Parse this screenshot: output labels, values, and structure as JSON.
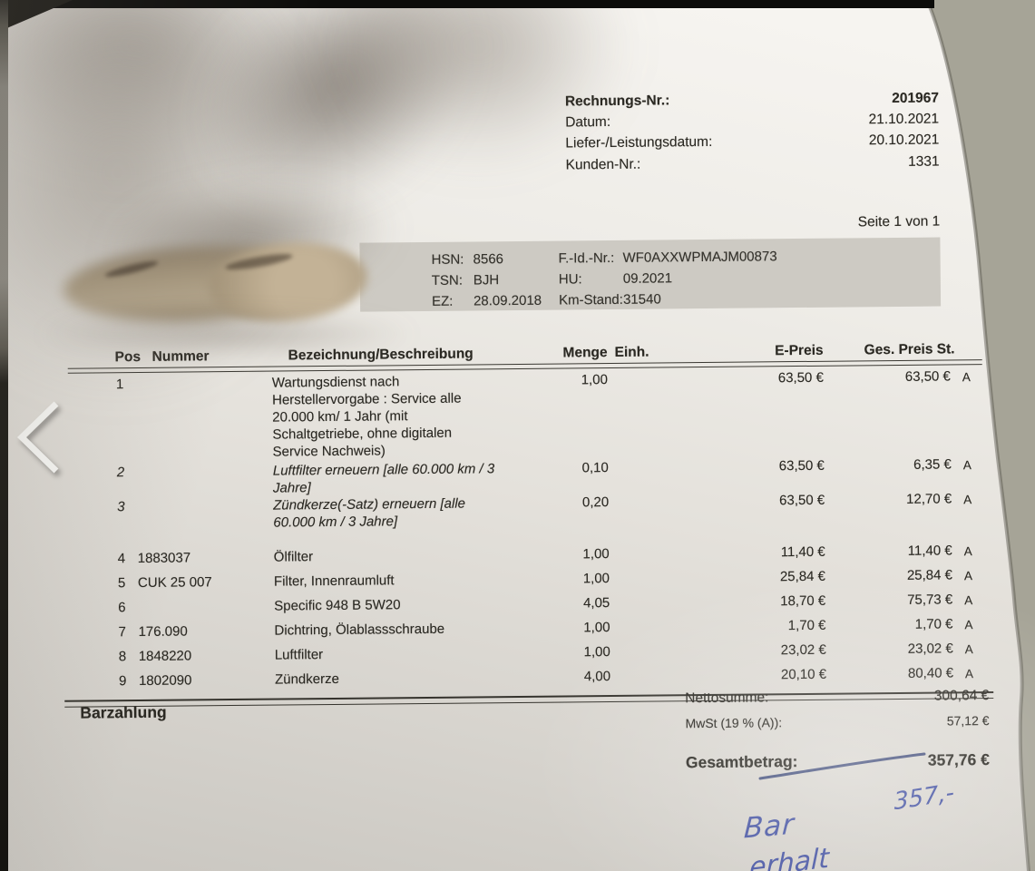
{
  "invoice": {
    "meta": {
      "rows": [
        {
          "label": "Rechnungs-Nr.:",
          "value": "201967"
        },
        {
          "label": "Datum:",
          "value": "21.10.2021"
        },
        {
          "label": "Liefer-/Leistungsdatum:",
          "value": "20.10.2021"
        },
        {
          "label": "Kunden-Nr.:",
          "value": "1331"
        }
      ],
      "page": "Seite 1 von 1"
    },
    "vehicle": {
      "left": [
        {
          "label": "HSN:",
          "value": "8566"
        },
        {
          "label": "TSN:",
          "value": "BJH"
        },
        {
          "label": "EZ:",
          "value": "28.09.2018"
        }
      ],
      "right": [
        {
          "label": "F.-Id.-Nr.:",
          "value": "WF0AXXWPMAJM00873"
        },
        {
          "label": "HU:",
          "value": "09.2021"
        },
        {
          "label": "Km-Stand:",
          "value": "31540"
        }
      ]
    },
    "table": {
      "headers": {
        "pos": "Pos",
        "nummer": "Nummer",
        "desc": "Bezeichnung/Beschreibung",
        "menge": "Menge",
        "einh": "Einh.",
        "epreis": "E-Preis",
        "ges": "Ges. Preis St."
      },
      "rows": [
        {
          "pos": "1",
          "nummer": "",
          "desc": "Wartungsdienst nach\nHerstellervorgabe : Service alle\n20.000 km/ 1 Jahr (mit\nSchaltgetriebe, ohne digitalen\nService Nachweis)",
          "menge": "1,00",
          "epreis": "63,50 €",
          "ges": "63,50 €",
          "st": "A",
          "italic": false
        },
        {
          "pos": "2",
          "nummer": "",
          "desc": "Luftfilter erneuern [alle 60.000 km / 3\nJahre]",
          "menge": "0,10",
          "epreis": "63,50 €",
          "ges": "6,35 €",
          "st": "A",
          "italic": true
        },
        {
          "pos": "3",
          "nummer": "",
          "desc": "Zündkerze(-Satz) erneuern [alle\n60.000 km / 3 Jahre]",
          "menge": "0,20",
          "epreis": "63,50 €",
          "ges": "12,70 €",
          "st": "A",
          "italic": true
        },
        {
          "pos": "4",
          "nummer": "1883037",
          "desc": "Ölfilter",
          "menge": "1,00",
          "epreis": "11,40 €",
          "ges": "11,40 €",
          "st": "A",
          "italic": false
        },
        {
          "pos": "5",
          "nummer": "CUK 25 007",
          "desc": "Filter, Innenraumluft",
          "menge": "1,00",
          "epreis": "25,84 €",
          "ges": "25,84 €",
          "st": "A",
          "italic": false
        },
        {
          "pos": "6",
          "nummer": "",
          "desc": "Specific 948 B 5W20",
          "menge": "4,05",
          "epreis": "18,70 €",
          "ges": "75,73 €",
          "st": "A",
          "italic": false
        },
        {
          "pos": "7",
          "nummer": "176.090",
          "desc": "Dichtring, Ölablassschraube",
          "menge": "1,00",
          "epreis": "1,70 €",
          "ges": "1,70 €",
          "st": "A",
          "italic": false
        },
        {
          "pos": "8",
          "nummer": "1848220",
          "desc": "Luftfilter",
          "menge": "1,00",
          "epreis": "23,02 €",
          "ges": "23,02 €",
          "st": "A",
          "italic": false
        },
        {
          "pos": "9",
          "nummer": "1802090",
          "desc": "Zündkerze",
          "menge": "4,00",
          "epreis": "20,10 €",
          "ges": "80,40 €",
          "st": "A",
          "italic": false
        }
      ]
    },
    "payment_method": "Barzahlung",
    "totals": {
      "net_label": "Nettosumme:",
      "net_value": "300,64 €",
      "vat_label": "MwSt (19 % (A)):",
      "vat_value": "57,12 €",
      "total_label": "Gesamtbetrag:",
      "total_value": "357,76 €"
    },
    "handwriting": {
      "amount": "357,-",
      "note1": "Bar",
      "note2": "erhalt"
    }
  },
  "colors": {
    "surface": "#a6a497",
    "handwriting_ink": "#38489e",
    "paper": "#eeece7"
  }
}
